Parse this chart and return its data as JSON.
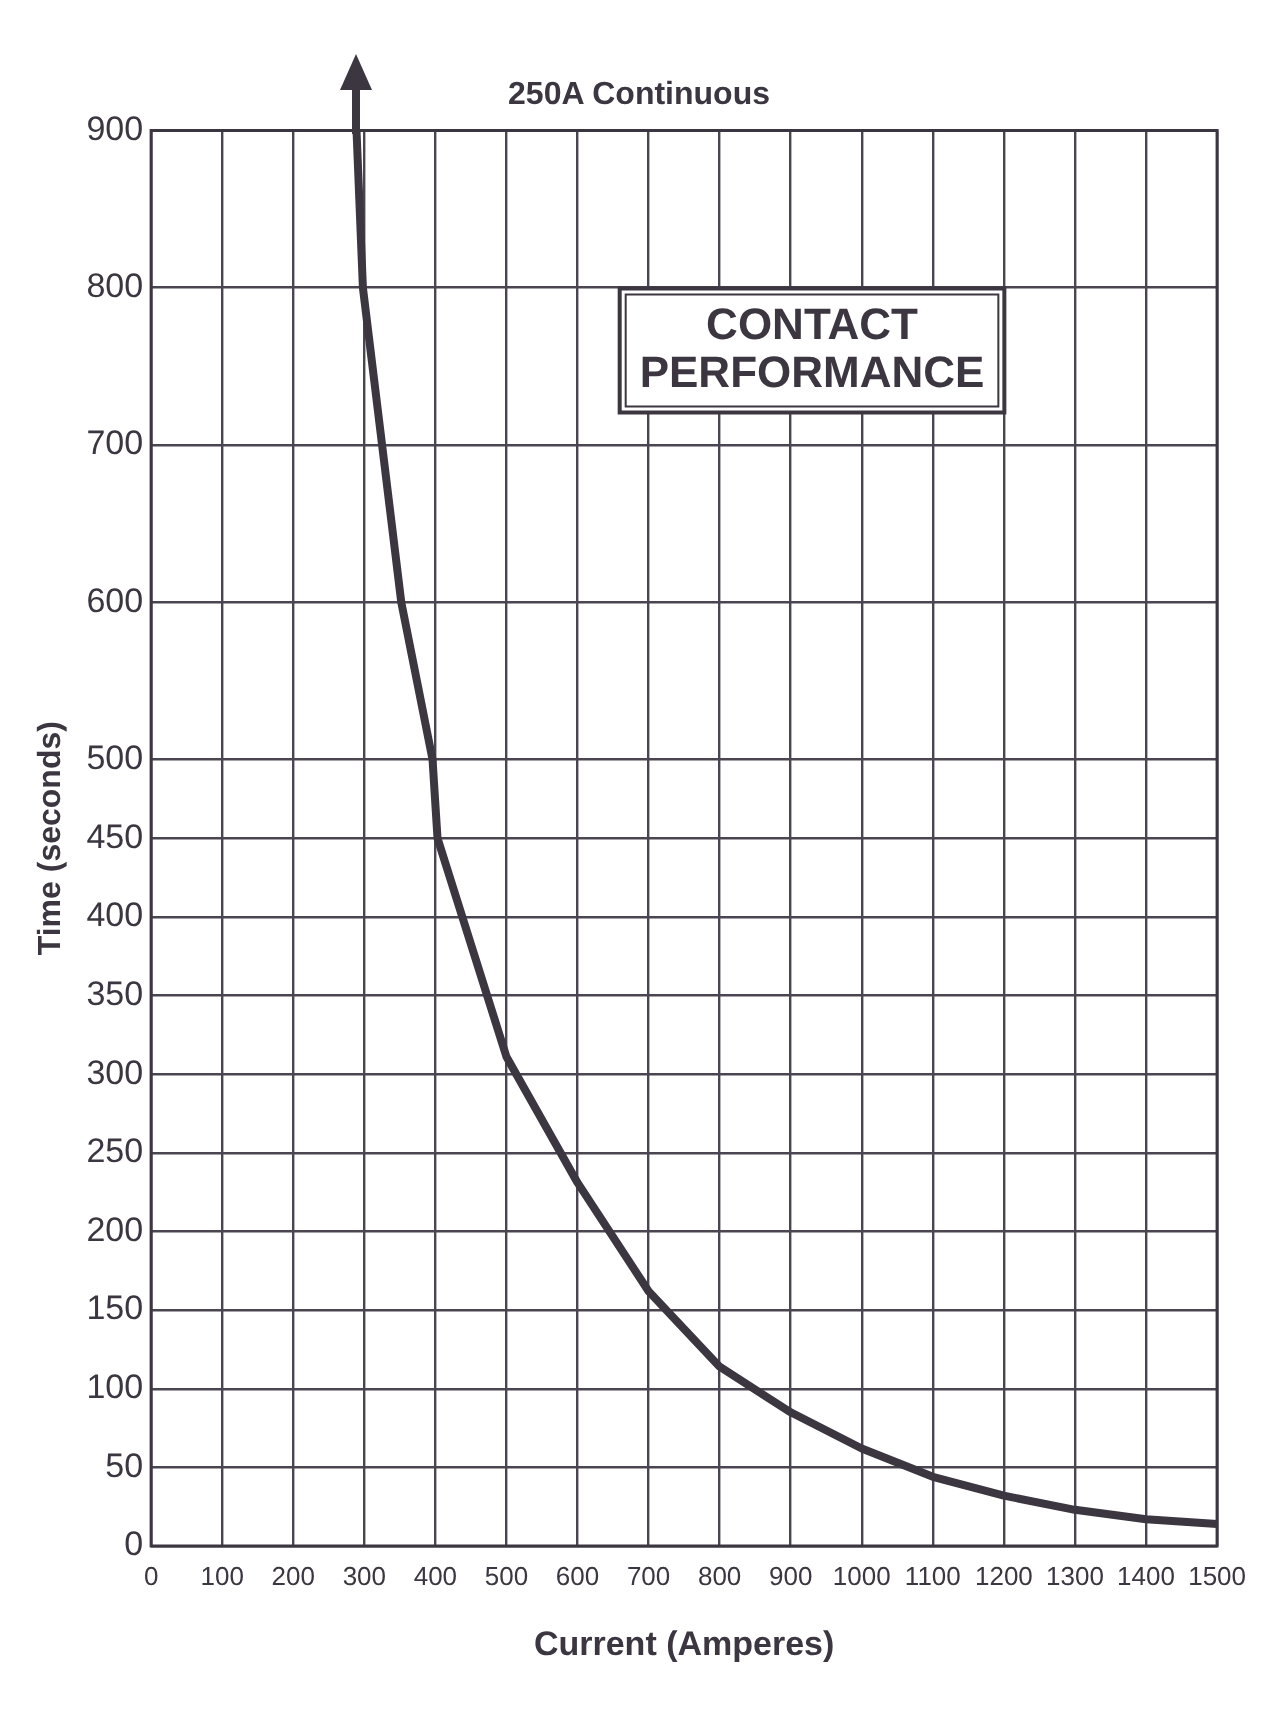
{
  "chart_data": {
    "type": "line",
    "title": "250A Continuous",
    "xlabel": "Current (Amperes)",
    "ylabel": "Time (seconds)",
    "annotations": [
      "CONTACT\nPERFORMANCE"
    ],
    "x": [
      289,
      298,
      325,
      352,
      396,
      403,
      500,
      600,
      700,
      800,
      900,
      1000,
      1100,
      1200,
      1300,
      1400,
      1500
    ],
    "series": [
      {
        "color": "#3b3640",
        "values": [
          900,
          800,
          700,
          600,
          500,
          450,
          311,
          231,
          162,
          114,
          85,
          62,
          44,
          32,
          23,
          17,
          14
        ]
      }
    ],
    "xlim": [
      0,
      1500
    ],
    "xticks": [
      0,
      100,
      200,
      300,
      400,
      500,
      600,
      700,
      800,
      900,
      1000,
      1100,
      1200,
      1300,
      1400,
      1500
    ],
    "ylim": [
      0,
      900
    ],
    "yticks": [
      0,
      50,
      100,
      150,
      200,
      250,
      300,
      350,
      400,
      450,
      500,
      600,
      700,
      800,
      900
    ],
    "grid": true,
    "legend": false,
    "marker": "none",
    "line_style": "solid"
  }
}
